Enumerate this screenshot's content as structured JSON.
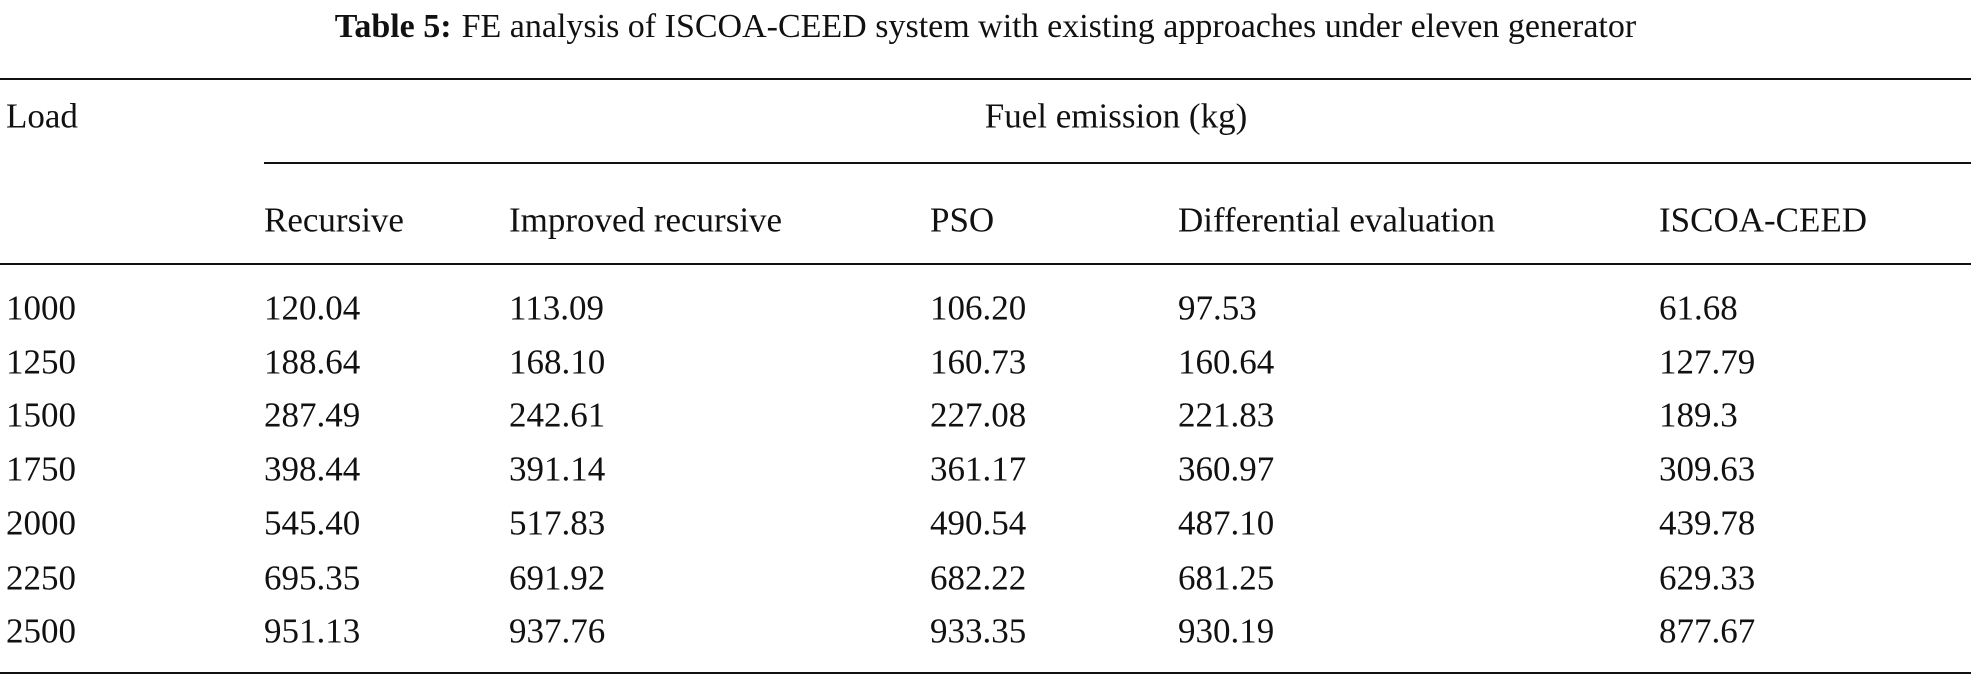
{
  "table": {
    "label": "Table 5:",
    "caption": "FE analysis of ISCOA-CEED system with existing approaches under eleven generator",
    "row_header": "Load",
    "group_header": "Fuel emission (kg)",
    "columns": [
      "Recursive",
      "Improved recursive",
      "PSO",
      "Differential evaluation",
      "ISCOA-CEED"
    ],
    "rows": [
      [
        "1000",
        "120.04",
        "113.09",
        "106.20",
        "97.53",
        "61.68"
      ],
      [
        "1250",
        "188.64",
        "168.10",
        "160.73",
        "160.64",
        "127.79"
      ],
      [
        "1500",
        "287.49",
        "242.61",
        "227.08",
        "221.83",
        "189.3"
      ],
      [
        "1750",
        "398.44",
        "391.14",
        "361.17",
        "360.97",
        "309.63"
      ],
      [
        "2000",
        "545.40",
        "517.83",
        "490.54",
        "487.10",
        "439.78"
      ],
      [
        "2250",
        "695.35",
        "691.92",
        "682.22",
        "681.25",
        "629.33"
      ],
      [
        "2500",
        "951.13",
        "937.76",
        "933.35",
        "930.19",
        "877.67"
      ]
    ]
  }
}
